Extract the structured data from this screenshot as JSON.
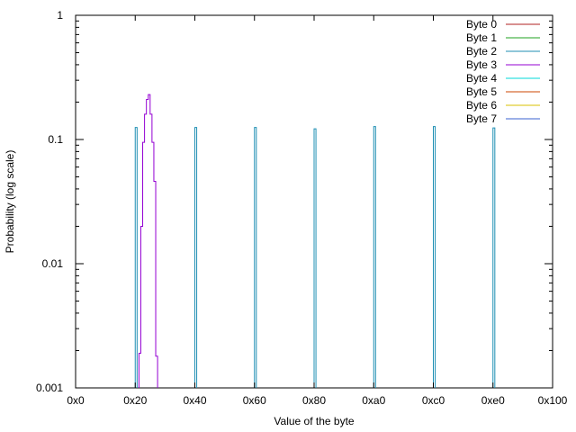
{
  "chart_data": {
    "type": "line",
    "title": "",
    "xlabel": "Value of the byte",
    "ylabel": "Probability (log scale)",
    "xlim": [
      0,
      256
    ],
    "ylim": [
      0.001,
      1
    ],
    "yscale": "log",
    "grid": false,
    "legend_position": "top-right",
    "x_ticks": [
      {
        "value": 0,
        "label": "0x0"
      },
      {
        "value": 32,
        "label": "0x20"
      },
      {
        "value": 64,
        "label": "0x40"
      },
      {
        "value": 96,
        "label": "0x60"
      },
      {
        "value": 128,
        "label": "0x80"
      },
      {
        "value": 160,
        "label": "0xa0"
      },
      {
        "value": 192,
        "label": "0xc0"
      },
      {
        "value": 224,
        "label": "0xe0"
      },
      {
        "value": 256,
        "label": "0x100"
      }
    ],
    "y_ticks": [
      {
        "value": 0.001,
        "label": "0.001"
      },
      {
        "value": 0.01,
        "label": "0.01"
      },
      {
        "value": 0.1,
        "label": "0.1"
      },
      {
        "value": 1,
        "label": "1"
      }
    ],
    "series": [
      {
        "name": "Byte 0",
        "color": "#b22222",
        "points": []
      },
      {
        "name": "Byte 1",
        "color": "#1fa01f",
        "points": []
      },
      {
        "name": "Byte 2",
        "color": "#1f8fb3",
        "points": [
          [
            32,
            0.125
          ],
          [
            64,
            0.125
          ],
          [
            96,
            0.125
          ],
          [
            128,
            0.122
          ],
          [
            160,
            0.127
          ],
          [
            192,
            0.127
          ],
          [
            224,
            0.124
          ]
        ]
      },
      {
        "name": "Byte 3",
        "color": "#9400d3",
        "points": [
          [
            34,
            0.0019
          ],
          [
            35,
            0.02
          ],
          [
            36,
            0.095
          ],
          [
            37,
            0.16
          ],
          [
            38,
            0.21
          ],
          [
            39,
            0.23
          ],
          [
            40,
            0.16
          ],
          [
            41,
            0.095
          ],
          [
            42,
            0.046
          ],
          [
            43,
            0.0018
          ]
        ]
      },
      {
        "name": "Byte 4",
        "color": "#00d8d8",
        "points": []
      },
      {
        "name": "Byte 5",
        "color": "#cc4400",
        "points": []
      },
      {
        "name": "Byte 6",
        "color": "#d8c000",
        "points": []
      },
      {
        "name": "Byte 7",
        "color": "#3a60d0",
        "points": []
      }
    ]
  }
}
